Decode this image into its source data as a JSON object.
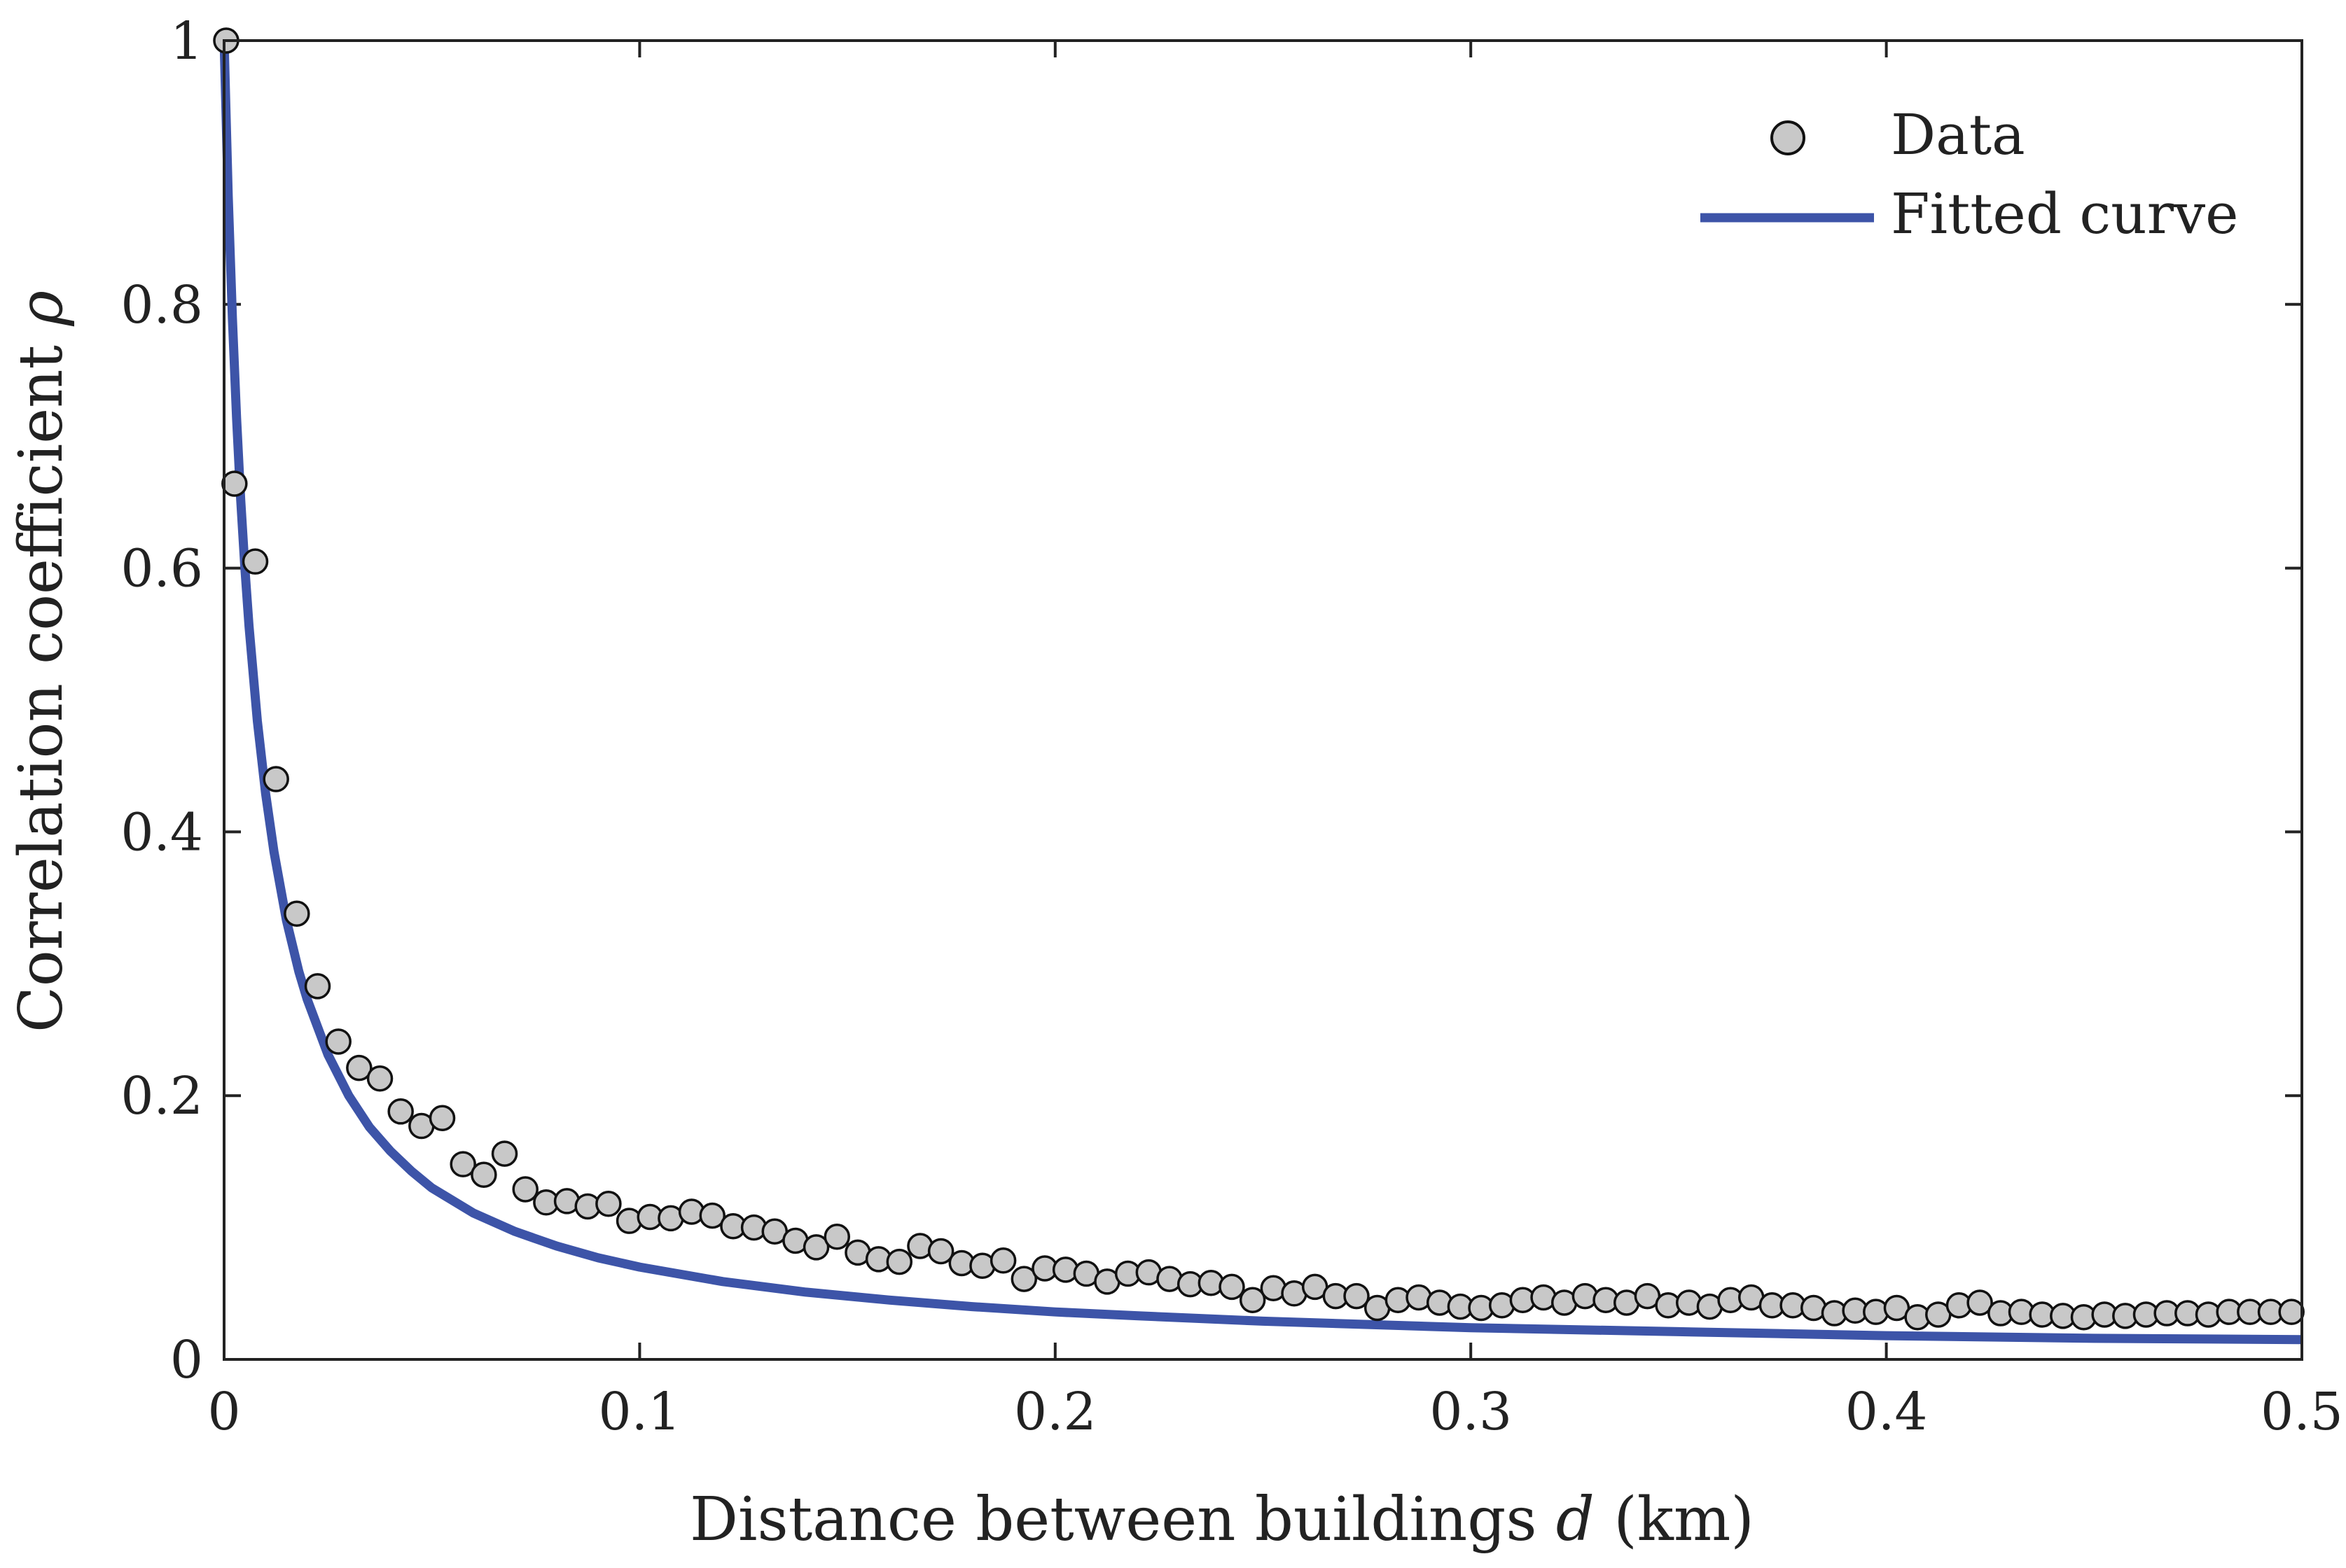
{
  "chart_data": {
    "type": "scatter",
    "title": "",
    "xlabel": {
      "prefix": "Distance between buildings ",
      "symbol": "d",
      "suffix": " (km)"
    },
    "ylabel": {
      "prefix": "Correlation coefficient ",
      "symbol": "ρ"
    },
    "xlim": [
      0,
      0.5
    ],
    "ylim": [
      0,
      1
    ],
    "xticks": [
      0,
      0.1,
      0.2,
      0.3,
      0.4,
      0.5
    ],
    "xtick_labels": [
      "0",
      "0.1",
      "0.2",
      "0.3",
      "0.4",
      "0.5"
    ],
    "yticks": [
      0,
      0.2,
      0.4,
      0.6,
      0.8,
      1
    ],
    "ytick_labels": [
      "0",
      "0.2",
      "0.4",
      "0.6",
      "0.8",
      "1"
    ],
    "grid": false,
    "legend": {
      "position": "top-right",
      "entries": [
        "Data",
        "Fitted curve"
      ]
    },
    "colors": {
      "fit": "#3d54a8",
      "marker_fill": "#c8c8c8",
      "marker_edge": "#111111",
      "axes": "#222222"
    },
    "series": [
      {
        "name": "Data",
        "kind": "scatter",
        "x": [
          0.0005,
          0.0025,
          0.0075,
          0.0125,
          0.0175,
          0.0225,
          0.0275,
          0.0325,
          0.0375,
          0.0425,
          0.0475,
          0.0525,
          0.0575,
          0.0625,
          0.0675,
          0.0725,
          0.0775,
          0.0825,
          0.0875,
          0.0925,
          0.0975,
          0.1025,
          0.1075,
          0.1125,
          0.1175,
          0.1225,
          0.1275,
          0.1325,
          0.1375,
          0.1425,
          0.1475,
          0.1525,
          0.1575,
          0.1625,
          0.1675,
          0.1725,
          0.1775,
          0.1825,
          0.1875,
          0.1925,
          0.1975,
          0.2025,
          0.2075,
          0.2125,
          0.2175,
          0.2225,
          0.2275,
          0.2325,
          0.2375,
          0.2425,
          0.2475,
          0.2525,
          0.2575,
          0.2625,
          0.2675,
          0.2725,
          0.2775,
          0.2825,
          0.2875,
          0.2925,
          0.2975,
          0.3025,
          0.3075,
          0.3125,
          0.3175,
          0.3225,
          0.3275,
          0.3325,
          0.3375,
          0.3425,
          0.3475,
          0.3525,
          0.3575,
          0.3625,
          0.3675,
          0.3725,
          0.3775,
          0.3825,
          0.3875,
          0.3925,
          0.3975,
          0.4025,
          0.4075,
          0.4125,
          0.4175,
          0.4225,
          0.4275,
          0.4325,
          0.4375,
          0.4425,
          0.4475,
          0.4525,
          0.4575,
          0.4625,
          0.4675,
          0.4725,
          0.4775,
          0.4825,
          0.4875,
          0.4925,
          0.4975
        ],
        "y": [
          1.0,
          0.664,
          0.605,
          0.44,
          0.338,
          0.283,
          0.241,
          0.221,
          0.213,
          0.188,
          0.177,
          0.183,
          0.148,
          0.14,
          0.156,
          0.129,
          0.119,
          0.12,
          0.116,
          0.118,
          0.105,
          0.108,
          0.107,
          0.112,
          0.109,
          0.101,
          0.1,
          0.097,
          0.09,
          0.085,
          0.093,
          0.081,
          0.076,
          0.074,
          0.086,
          0.082,
          0.073,
          0.071,
          0.075,
          0.061,
          0.069,
          0.068,
          0.065,
          0.059,
          0.065,
          0.066,
          0.061,
          0.057,
          0.058,
          0.055,
          0.045,
          0.054,
          0.05,
          0.055,
          0.048,
          0.048,
          0.039,
          0.045,
          0.047,
          0.043,
          0.04,
          0.039,
          0.041,
          0.045,
          0.047,
          0.043,
          0.048,
          0.045,
          0.043,
          0.048,
          0.041,
          0.043,
          0.04,
          0.045,
          0.047,
          0.041,
          0.041,
          0.039,
          0.035,
          0.037,
          0.036,
          0.039,
          0.032,
          0.034,
          0.041,
          0.043,
          0.035,
          0.036,
          0.034,
          0.033,
          0.032,
          0.034,
          0.033,
          0.034,
          0.035,
          0.035,
          0.034,
          0.036,
          0.036,
          0.036,
          0.036
        ]
      },
      {
        "name": "Fitted curve",
        "kind": "line",
        "x": [
          0,
          0.001,
          0.002,
          0.003,
          0.004,
          0.005,
          0.006,
          0.008,
          0.01,
          0.012,
          0.015,
          0.018,
          0.02,
          0.025,
          0.03,
          0.035,
          0.04,
          0.045,
          0.05,
          0.06,
          0.07,
          0.08,
          0.09,
          0.1,
          0.12,
          0.14,
          0.16,
          0.18,
          0.2,
          0.22,
          0.25,
          0.3,
          0.35,
          0.4,
          0.45,
          0.5
        ],
        "y": [
          1.0,
          0.882,
          0.789,
          0.714,
          0.652,
          0.6,
          0.556,
          0.484,
          0.429,
          0.385,
          0.333,
          0.294,
          0.273,
          0.231,
          0.2,
          0.176,
          0.158,
          0.143,
          0.13,
          0.111,
          0.097,
          0.086,
          0.077,
          0.07,
          0.059,
          0.051,
          0.045,
          0.04,
          0.036,
          0.033,
          0.029,
          0.024,
          0.021,
          0.018,
          0.016,
          0.015
        ]
      }
    ]
  }
}
